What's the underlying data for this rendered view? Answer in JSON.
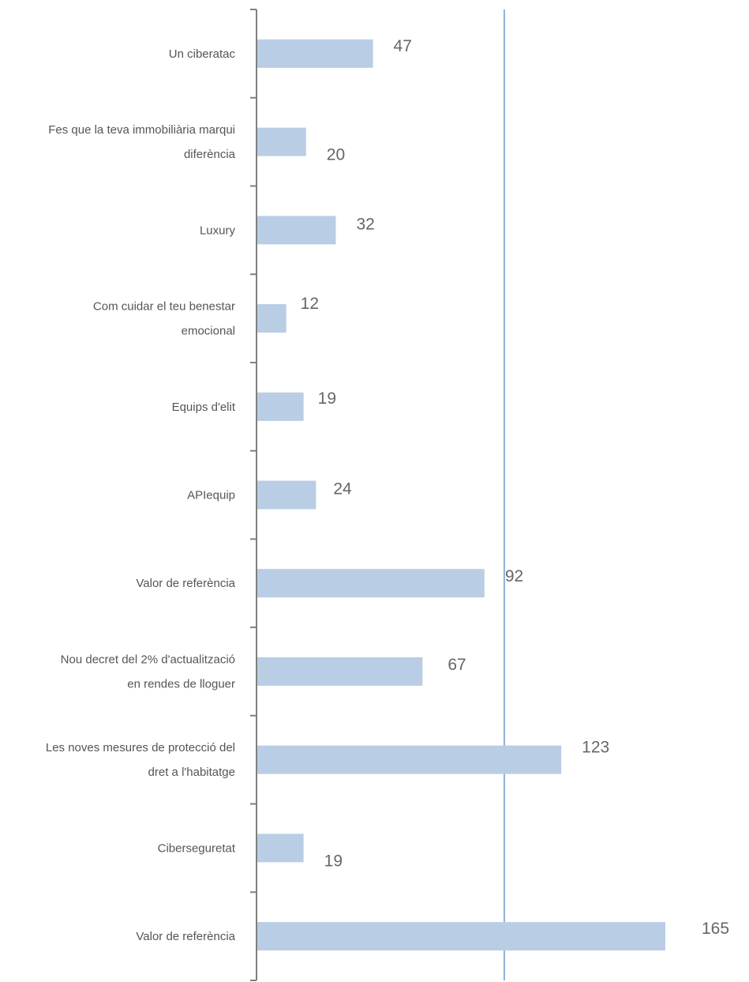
{
  "chart_data": {
    "type": "bar",
    "orientation": "horizontal",
    "categories": [
      [
        "Un ciberatac"
      ],
      [
        "Fes que la teva immobiliària marqui",
        "diferència"
      ],
      [
        "Luxury"
      ],
      [
        "Com cuidar el teu benestar",
        "emocional"
      ],
      [
        "Equips d'elit"
      ],
      [
        "APIequip"
      ],
      [
        "Valor de referència"
      ],
      [
        "Nou decret del 2% d'actualització",
        "en rendes de lloguer"
      ],
      [
        "Les noves mesures de protecció del",
        "dret a l'habitatge"
      ],
      [
        "Ciberseguretat"
      ],
      [
        "Valor de referència"
      ]
    ],
    "values": [
      47,
      20,
      32,
      12,
      19,
      24,
      92,
      67,
      123,
      19,
      165
    ],
    "reference_line": 100,
    "xlim": [
      0,
      170
    ],
    "bar_color": "#b9cde5",
    "reference_line_color": "#8fb1d9",
    "axis_color": "#7f7f7f",
    "grid": false,
    "legend": "none"
  }
}
